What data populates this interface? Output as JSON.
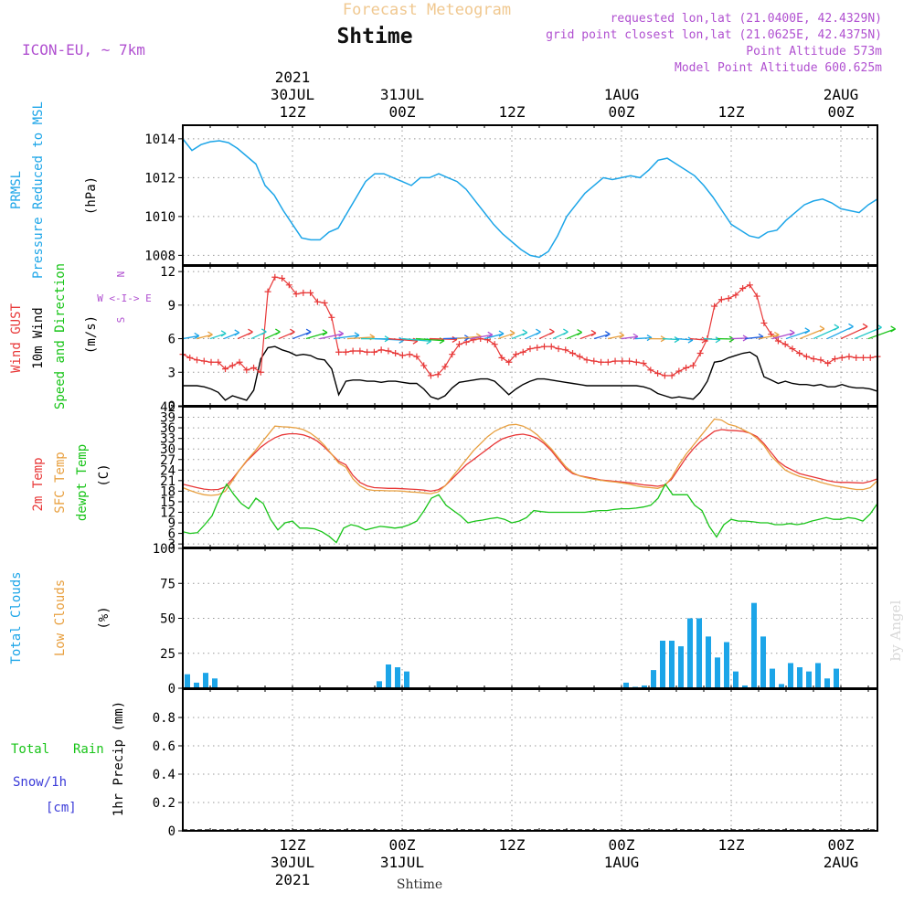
{
  "header": {
    "top_title": "Forecast Meteogram",
    "location": "Shtime",
    "model": "ICON-EU, ~ 7km",
    "requested": "requested lon,lat (21.0400E, 42.4329N)",
    "grid_point": "grid point closest lon,lat (21.0625E, 42.4375N)",
    "point_alt": "Point Altitude 573m",
    "model_alt": "Model Point Altitude 600.625m",
    "footer_location": "Shtime",
    "watermark": "by Angel"
  },
  "colors": {
    "pressure": "#1ca5e8",
    "gust": "#e83838",
    "wind10": "#000000",
    "t2m": "#e83838",
    "sfc": "#e8a040",
    "dewpt": "#18c418",
    "clouds_total": "#1ca5e8",
    "clouds_low": "#e8a040",
    "purple": "#b050d0",
    "title_orange": "#f0c890"
  },
  "time_axis": {
    "top": [
      {
        "t": 12,
        "lines": [
          "2021",
          "30JUL",
          "12Z"
        ]
      },
      {
        "t": 24,
        "lines": [
          "31JUL",
          "00Z"
        ]
      },
      {
        "t": 36,
        "lines": [
          "12Z"
        ]
      },
      {
        "t": 48,
        "lines": [
          "1AUG",
          "00Z"
        ]
      },
      {
        "t": 60,
        "lines": [
          "12Z"
        ]
      },
      {
        "t": 72,
        "lines": [
          "2AUG",
          "00Z"
        ]
      }
    ],
    "bottom": [
      {
        "t": 12,
        "lines": [
          "12Z",
          "30JUL",
          "2021"
        ]
      },
      {
        "t": 24,
        "lines": [
          "00Z",
          "31JUL"
        ]
      },
      {
        "t": 36,
        "lines": [
          "12Z"
        ]
      },
      {
        "t": 48,
        "lines": [
          "00Z",
          "1AUG"
        ]
      },
      {
        "t": 60,
        "lines": [
          "12Z"
        ]
      },
      {
        "t": 72,
        "lines": [
          "00Z",
          "2AUG"
        ]
      }
    ]
  },
  "panel_labels": {
    "p1": [
      "PRMSL",
      "Pressure Reduced to MSL",
      "(hPa)"
    ],
    "p2": [
      "Wind GUST",
      "10m Wind",
      "Speed and Direction",
      "(m/s)"
    ],
    "p2_compass": [
      "N",
      "W <-I-> E",
      "S"
    ],
    "p3": [
      "2m Temp",
      "SFC Temp",
      "dewpt Temp",
      "(C)"
    ],
    "p4": [
      "Total Clouds",
      "Low Clouds",
      "(%)"
    ],
    "p5": [
      "Total",
      "Rain",
      "Snow/1h",
      "[cm]",
      "1hr Precip (mm)"
    ]
  },
  "chart_data": [
    {
      "type": "line",
      "title": "PRMSL Pressure Reduced to MSL",
      "ylabel": "(hPa)",
      "x_unit": "hours from 30JUL 00Z",
      "ylim": [
        1007.5,
        1014.7
      ],
      "yticks": [
        1008,
        1010,
        1012,
        1014
      ],
      "grid": true,
      "series": [
        {
          "name": "PRMSL",
          "x": [
            0,
            1,
            2,
            3,
            4,
            5,
            6,
            7,
            8,
            9,
            10,
            11,
            12,
            13,
            14,
            15,
            16,
            17,
            18,
            19,
            20,
            21,
            22,
            23,
            24,
            25,
            26,
            27,
            28,
            29,
            30,
            31,
            32,
            33,
            34,
            35,
            36,
            37,
            38,
            39,
            40,
            41,
            42,
            43,
            44,
            45,
            46,
            47,
            48,
            49,
            50,
            51,
            52,
            53,
            54,
            55,
            56,
            57,
            58,
            59,
            60,
            61,
            62,
            63,
            64,
            65,
            66,
            67,
            68,
            69,
            70,
            71,
            72,
            73,
            74,
            75,
            76
          ],
          "values": [
            1014.0,
            1013.4,
            1013.7,
            1013.85,
            1013.9,
            1013.8,
            1013.5,
            1013.1,
            1012.7,
            1011.6,
            1011.1,
            1010.3,
            1009.6,
            1008.9,
            1008.8,
            1008.8,
            1009.2,
            1009.4,
            1010.2,
            1011.0,
            1011.8,
            1012.2,
            1012.2,
            1012.0,
            1011.8,
            1011.6,
            1012.0,
            1012.0,
            1012.2,
            1012.0,
            1011.8,
            1011.4,
            1010.8,
            1010.2,
            1009.6,
            1009.1,
            1008.7,
            1008.3,
            1008.0,
            1007.9,
            1008.2,
            1009.0,
            1010.0,
            1010.6,
            1011.2,
            1011.6,
            1012.0,
            1011.9,
            1012.0,
            1012.1,
            1012.0,
            1012.4,
            1012.9,
            1013.0,
            1012.7,
            1012.4,
            1012.1,
            1011.6,
            1011.0,
            1010.3,
            1009.6,
            1009.3,
            1009.0,
            1008.9,
            1009.2,
            1009.3,
            1009.8,
            1010.2,
            1010.6,
            1010.8,
            1010.9,
            1010.7,
            1010.4,
            1010.3,
            1010.2,
            1010.6,
            1010.9
          ]
        }
      ]
    },
    {
      "type": "line",
      "title": "Wind GUST / 10m Wind Speed and Direction",
      "ylabel": "(m/s)",
      "ylim": [
        0,
        12.5
      ],
      "yticks": [
        0,
        3,
        6,
        9,
        12
      ],
      "grid": true,
      "series": [
        {
          "name": "Wind GUST",
          "values": [
            4.6,
            4.3,
            4.1,
            4.0,
            3.9,
            3.9,
            3.3,
            3.6,
            3.9,
            3.2,
            3.4,
            3.0,
            10.2,
            11.5,
            11.4,
            10.8,
            10.0,
            10.1,
            10.1,
            9.3,
            9.2,
            7.9,
            4.8,
            4.8,
            4.9,
            4.9,
            4.8,
            4.8,
            5.0,
            4.9,
            4.7,
            4.5,
            4.6,
            4.4,
            3.6,
            2.7,
            2.8,
            3.5,
            4.6,
            5.5,
            5.7,
            5.9,
            6.0,
            5.9,
            5.5,
            4.3,
            3.9,
            4.6,
            4.8,
            5.1,
            5.2,
            5.3,
            5.3,
            5.1,
            5.0,
            4.7,
            4.4,
            4.1,
            4.0,
            3.9,
            3.9,
            4.0,
            4.0,
            4.0,
            3.9,
            3.8,
            3.2,
            2.9,
            2.7,
            2.7,
            3.1,
            3.4,
            3.6,
            4.7,
            6.0,
            8.9,
            9.5,
            9.6,
            9.9,
            10.5,
            10.8,
            9.8,
            7.4,
            6.4,
            5.8,
            5.5,
            5.1,
            4.7,
            4.4,
            4.2,
            4.1,
            3.8,
            4.2,
            4.3,
            4.4,
            4.3,
            4.3,
            4.3,
            4.4
          ]
        },
        {
          "name": "10m Wind",
          "values": [
            1.8,
            1.8,
            1.8,
            1.7,
            1.5,
            1.2,
            0.5,
            0.9,
            0.7,
            0.5,
            1.4,
            4.2,
            5.2,
            5.3,
            5.0,
            4.8,
            4.5,
            4.6,
            4.5,
            4.2,
            4.1,
            3.3,
            1.0,
            2.2,
            2.3,
            2.3,
            2.2,
            2.2,
            2.1,
            2.2,
            2.2,
            2.1,
            2.0,
            2.0,
            1.5,
            0.8,
            0.6,
            0.9,
            1.6,
            2.1,
            2.2,
            2.3,
            2.4,
            2.4,
            2.2,
            1.6,
            1.0,
            1.5,
            1.9,
            2.2,
            2.4,
            2.4,
            2.3,
            2.2,
            2.1,
            2.0,
            1.9,
            1.8,
            1.8,
            1.8,
            1.8,
            1.8,
            1.8,
            1.8,
            1.8,
            1.7,
            1.5,
            1.1,
            0.9,
            0.7,
            0.8,
            0.7,
            0.6,
            1.2,
            2.2,
            3.9,
            4.0,
            4.3,
            4.5,
            4.7,
            4.8,
            4.4,
            2.6,
            2.3,
            2.0,
            2.2,
            2.0,
            1.9,
            1.9,
            1.8,
            1.9,
            1.7,
            1.7,
            1.9,
            1.7,
            1.6,
            1.6,
            1.5,
            1.3
          ]
        }
      ],
      "wind_direction_arrows": "coloured flags along the 6 m/s line, mostly westerly/southwesterly"
    },
    {
      "type": "line",
      "title": "2m Temp / SFC Temp / dewpt Temp",
      "ylabel": "(C)",
      "ylim": [
        2,
        42
      ],
      "yticks": [
        3,
        6,
        9,
        12,
        15,
        18,
        21,
        24,
        27,
        30,
        33,
        36,
        39,
        42
      ],
      "grid": true,
      "series": [
        {
          "name": "2m Temp",
          "values": [
            20.0,
            19.5,
            19.0,
            18.6,
            18.4,
            18.5,
            19.2,
            21.5,
            24.0,
            26.5,
            28.5,
            30.5,
            32.0,
            33.2,
            34.0,
            34.3,
            34.3,
            34.0,
            33.3,
            32.2,
            30.5,
            28.5,
            26.5,
            25.5,
            22.5,
            20.5,
            19.5,
            19.0,
            18.9,
            18.8,
            18.8,
            18.7,
            18.6,
            18.5,
            18.3,
            18.0,
            18.4,
            19.5,
            21.5,
            23.5,
            25.5,
            27.0,
            28.5,
            30.0,
            31.5,
            32.8,
            33.5,
            34.0,
            34.2,
            33.8,
            33.0,
            31.5,
            29.5,
            27.0,
            24.5,
            23.0,
            22.4,
            22.0,
            21.6,
            21.2,
            21.0,
            20.8,
            20.6,
            20.4,
            20.1,
            19.8,
            19.6,
            19.4,
            19.8,
            21.5,
            24.5,
            27.5,
            30.0,
            32.0,
            33.5,
            35.0,
            35.5,
            35.3,
            35.2,
            35.0,
            34.5,
            33.5,
            31.5,
            29.0,
            26.5,
            25.0,
            24.0,
            23.0,
            22.5,
            22.0,
            21.5,
            21.0,
            20.6,
            20.5,
            20.5,
            20.4,
            20.3,
            20.8,
            21.5
          ]
        },
        {
          "name": "SFC Temp",
          "values": [
            19.0,
            18.2,
            17.5,
            17.0,
            16.8,
            17.0,
            18.0,
            21.0,
            24.0,
            26.7,
            29.0,
            31.5,
            34.0,
            36.5,
            36.3,
            36.2,
            36.0,
            35.5,
            34.5,
            33.0,
            31.0,
            28.5,
            26.0,
            24.8,
            21.5,
            19.5,
            18.5,
            18.2,
            18.2,
            18.1,
            18.1,
            18.0,
            17.8,
            17.7,
            17.5,
            17.3,
            17.8,
            19.5,
            22.0,
            24.5,
            27.0,
            29.5,
            31.5,
            33.5,
            35.0,
            36.0,
            36.8,
            37.0,
            36.5,
            35.5,
            34.0,
            32.0,
            30.0,
            27.5,
            25.0,
            23.3,
            22.3,
            21.8,
            21.4,
            21.1,
            20.8,
            20.6,
            20.3,
            20.0,
            19.5,
            19.2,
            19.0,
            18.8,
            19.5,
            22.0,
            25.5,
            28.5,
            31.0,
            33.5,
            36.0,
            38.5,
            38.2,
            37.0,
            36.5,
            35.5,
            34.5,
            33.0,
            31.0,
            28.0,
            26.0,
            24.0,
            23.0,
            22.2,
            21.7,
            21.2,
            20.5,
            20.0,
            19.5,
            19.2,
            18.8,
            18.5,
            18.5,
            19.0,
            21.0
          ]
        },
        {
          "name": "dewpt Temp",
          "values": [
            6.5,
            6.0,
            6.2,
            8.5,
            11.0,
            16.0,
            20.0,
            17.0,
            14.5,
            13.0,
            16.0,
            14.5,
            10.0,
            7.0,
            9.0,
            9.5,
            7.5,
            7.5,
            7.3,
            6.5,
            5.2,
            3.4,
            7.5,
            8.5,
            8.0,
            7.0,
            7.5,
            8.0,
            7.8,
            7.5,
            7.8,
            8.5,
            9.5,
            12.5,
            16.0,
            17.0,
            14.0,
            12.5,
            11.0,
            9.0,
            9.5,
            9.8,
            10.2,
            10.5,
            10.0,
            9.0,
            9.5,
            10.5,
            12.5,
            12.2,
            12.0,
            12.0,
            12.0,
            12.0,
            12.0,
            12.0,
            12.3,
            12.5,
            12.5,
            12.8,
            13.0,
            13.0,
            13.2,
            13.5,
            14.0,
            16.0,
            20.0,
            17.0,
            17.0,
            17.0,
            14.0,
            12.5,
            8.0,
            5.0,
            8.5,
            10.0,
            9.5,
            9.5,
            9.3,
            9.0,
            9.0,
            8.5,
            8.5,
            8.8,
            8.5,
            8.8,
            9.5,
            10.0,
            10.5,
            10.0,
            10.0,
            10.5,
            10.2,
            9.5,
            11.5,
            14.5
          ]
        }
      ]
    },
    {
      "type": "bar",
      "title": "Total Clouds / Low Clouds",
      "ylabel": "(%)",
      "ylim": [
        0,
        100
      ],
      "yticks": [
        0,
        25,
        50,
        75,
        100
      ],
      "grid": true,
      "series": [
        {
          "name": "Total Clouds",
          "x": [
            0,
            1,
            2,
            3,
            21,
            22,
            23,
            24,
            48,
            49,
            50,
            51,
            52,
            53,
            54,
            55,
            56,
            57,
            58,
            59,
            60,
            61,
            62,
            63,
            64,
            65,
            66,
            67,
            68,
            69,
            70,
            71,
            72,
            73
          ],
          "values": [
            10,
            4,
            11,
            7,
            5,
            17,
            15,
            12,
            4,
            1,
            2,
            13,
            34,
            34,
            30,
            50,
            50,
            37,
            22,
            33,
            12,
            2,
            61,
            37,
            14,
            3,
            18,
            15,
            12,
            18,
            7,
            14,
            0,
            0
          ]
        }
      ]
    },
    {
      "type": "line",
      "title": "Total Rain / Snow 1hr Precip",
      "ylabel": "1hr Precip (mm)",
      "ylim": [
        0,
        1
      ],
      "yticks": [
        0,
        0.2,
        0.4,
        0.6,
        0.8
      ],
      "grid": true,
      "series": [
        {
          "name": "Total Rain",
          "values": [
            0,
            0
          ]
        }
      ]
    }
  ]
}
